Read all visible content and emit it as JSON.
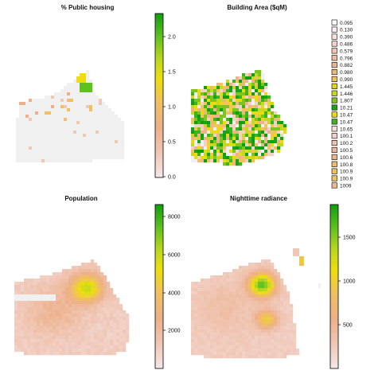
{
  "colors": {
    "background_cell": "#f0f0f0",
    "ramp": [
      "#f5e8e8",
      "#f0c8b8",
      "#edb08a",
      "#f0c060",
      "#eedd10",
      "#bcd820",
      "#60c020",
      "#0f9e0f"
    ]
  },
  "panels": [
    {
      "id": "public-housing",
      "title": "% Public housing",
      "legend": {
        "type": "continuous",
        "min": 0,
        "max": 2.3,
        "ticks": [
          "0.0",
          "0.5",
          "1.0",
          "1.5",
          "2.0"
        ]
      }
    },
    {
      "id": "building-area",
      "title": "Building Area ($qM)",
      "legend": {
        "type": "categorical",
        "entries": [
          {
            "label": "0.095",
            "color": "#ffffff"
          },
          {
            "label": "0.130",
            "color": "#fbecea"
          },
          {
            "label": "0.390",
            "color": "#f6e0da"
          },
          {
            "label": "0.486",
            "color": "#f3d2c6"
          },
          {
            "label": "0.579",
            "color": "#f0c4b2"
          },
          {
            "label": "0.796",
            "color": "#eebb9e"
          },
          {
            "label": "0.882",
            "color": "#edb48a"
          },
          {
            "label": "0.980",
            "color": "#eeb878"
          },
          {
            "label": "0.990",
            "color": "#f0c45a"
          },
          {
            "label": "1.445",
            "color": "#e2d418"
          },
          {
            "label": "1.446",
            "color": "#c8d820"
          },
          {
            "label": "1.807",
            "color": "#7cc41e"
          },
          {
            "label": "10.21",
            "color": "#1aa21a"
          },
          {
            "label": "10.47",
            "color": "#e8dc10"
          },
          {
            "label": "10.47",
            "color": "#3eb41a"
          },
          {
            "label": "10.65",
            "color": "#f4dfd6"
          },
          {
            "label": "100.1",
            "color": "#f2d2c4"
          },
          {
            "label": "100.2",
            "color": "#efc2ac"
          },
          {
            "label": "100.5",
            "color": "#edb898"
          },
          {
            "label": "100.6",
            "color": "#eeb482"
          },
          {
            "label": "100.8",
            "color": "#eeba6c"
          },
          {
            "label": "100.9",
            "color": "#efbf62"
          },
          {
            "label": "100.9",
            "color": "#f0c45c"
          },
          {
            "label": "1009",
            "color": "#efb88a"
          }
        ]
      }
    },
    {
      "id": "population",
      "title": "Population",
      "legend": {
        "type": "continuous",
        "min": 0,
        "max": 8700,
        "ticks": [
          "2000",
          "4000",
          "6000",
          "8000"
        ]
      }
    },
    {
      "id": "nighttime-radiance",
      "title": "Nighttime radiance",
      "legend": {
        "type": "continuous",
        "min": 0,
        "max": 1850,
        "ticks": [
          "500",
          "1000",
          "1500"
        ]
      }
    }
  ]
}
